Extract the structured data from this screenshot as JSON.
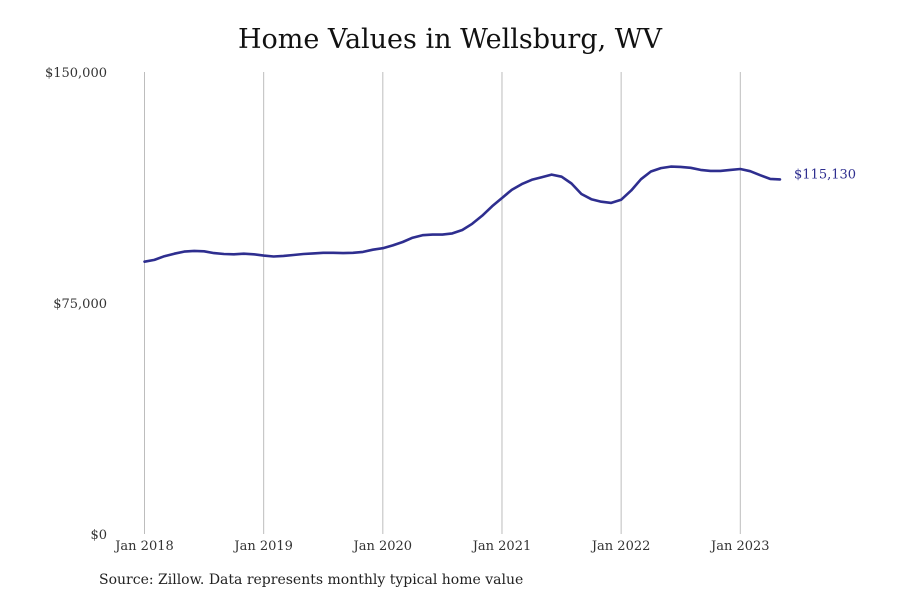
{
  "chart_data": {
    "type": "line",
    "title": "Home Values in Wellsburg, WV",
    "source": "Source: Zillow. Data represents monthly typical home value",
    "xlabel": "",
    "ylabel": "",
    "ylim": [
      0,
      150000
    ],
    "y_ticks": [
      {
        "value": 0,
        "label": "$0"
      },
      {
        "value": 75000,
        "label": "$75,000"
      },
      {
        "value": 150000,
        "label": "$150,000"
      }
    ],
    "x_ticks": [
      {
        "date": "2018-01",
        "label": "Jan 2018"
      },
      {
        "date": "2019-01",
        "label": "Jan 2019"
      },
      {
        "date": "2020-01",
        "label": "Jan 2020"
      },
      {
        "date": "2021-01",
        "label": "Jan 2021"
      },
      {
        "date": "2022-01",
        "label": "Jan 2022"
      },
      {
        "date": "2023-01",
        "label": "Jan 2023"
      }
    ],
    "xlim": [
      "2018-01",
      "2023-12"
    ],
    "grid": "vertical",
    "line_color": "#2e2e8f",
    "end_label": "$115,130",
    "series": [
      {
        "x": [
          "2018-01",
          "2018-02",
          "2018-03",
          "2018-04",
          "2018-05",
          "2018-06",
          "2018-07",
          "2018-08",
          "2018-09",
          "2018-10",
          "2018-11",
          "2018-12",
          "2019-01",
          "2019-02",
          "2019-03",
          "2019-04",
          "2019-05",
          "2019-06",
          "2019-07",
          "2019-08",
          "2019-09",
          "2019-10",
          "2019-11",
          "2019-12",
          "2020-01",
          "2020-02",
          "2020-03",
          "2020-04",
          "2020-05",
          "2020-06",
          "2020-07",
          "2020-08",
          "2020-09",
          "2020-10",
          "2020-11",
          "2020-12",
          "2021-01",
          "2021-02",
          "2021-03",
          "2021-04",
          "2021-05",
          "2021-06",
          "2021-07",
          "2021-08",
          "2021-09",
          "2021-10",
          "2021-11",
          "2021-12",
          "2022-01",
          "2022-02",
          "2022-03",
          "2022-04",
          "2022-05",
          "2022-06",
          "2022-07",
          "2022-08",
          "2022-09",
          "2022-10",
          "2022-11",
          "2022-12",
          "2023-01",
          "2023-02",
          "2023-03",
          "2023-04",
          "2023-05"
        ],
        "y": [
          88400,
          89000,
          90200,
          91000,
          91700,
          91900,
          91800,
          91200,
          90900,
          90800,
          91000,
          90800,
          90400,
          90100,
          90300,
          90600,
          90900,
          91100,
          91300,
          91300,
          91200,
          91300,
          91600,
          92300,
          92800,
          93700,
          94800,
          96200,
          97000,
          97200,
          97200,
          97600,
          98700,
          100700,
          103300,
          106400,
          109100,
          111800,
          113600,
          115000,
          115800,
          116700,
          116000,
          113800,
          110400,
          108700,
          107900,
          107500,
          108500,
          111500,
          115200,
          117700,
          118800,
          119300,
          119200,
          118900,
          118200,
          117900,
          117900,
          118200,
          118500,
          117800,
          116500,
          115300,
          115130
        ]
      }
    ]
  }
}
